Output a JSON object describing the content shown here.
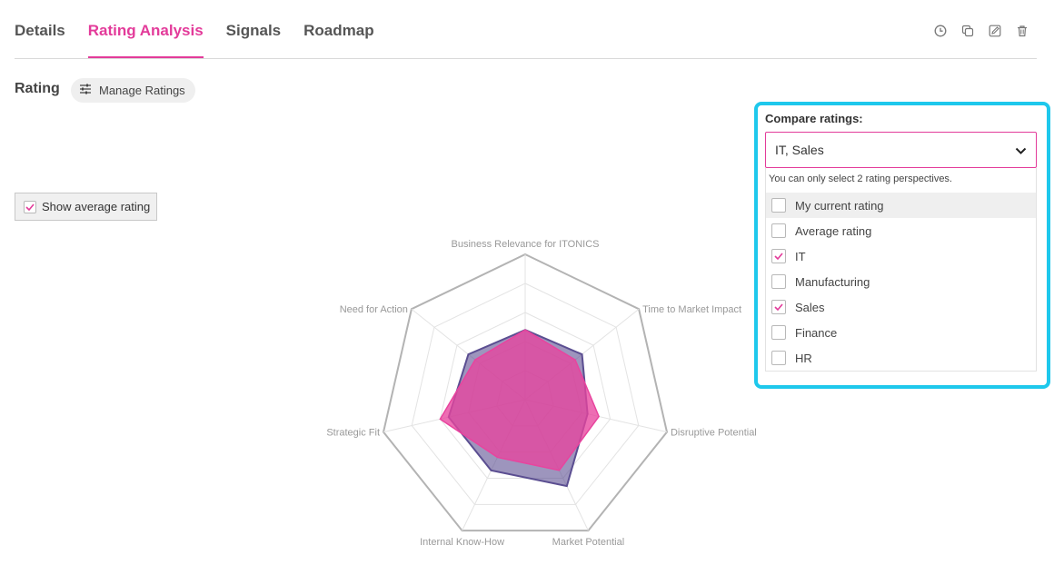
{
  "tabs": [
    {
      "label": "Details",
      "active": false
    },
    {
      "label": "Rating Analysis",
      "active": true
    },
    {
      "label": "Signals",
      "active": false
    },
    {
      "label": "Roadmap",
      "active": false
    }
  ],
  "toolbar_icons": [
    "history-icon",
    "copy-icon",
    "edit-icon",
    "trash-icon"
  ],
  "rating": {
    "title": "Rating",
    "manage_label": "Manage Ratings"
  },
  "average_toggle": {
    "label": "Show average rating",
    "checked": true
  },
  "compare": {
    "title": "Compare ratings:",
    "selected_value": "IT, Sales",
    "hint": "You can only select 2 rating perspectives.",
    "options": [
      {
        "label": "My current rating",
        "checked": false,
        "highlighted": true
      },
      {
        "label": "Average rating",
        "checked": false,
        "highlighted": false
      },
      {
        "label": "IT",
        "checked": true,
        "highlighted": false
      },
      {
        "label": "Manufacturing",
        "checked": false,
        "highlighted": false
      },
      {
        "label": "Sales",
        "checked": true,
        "highlighted": false
      },
      {
        "label": "Finance",
        "checked": false,
        "highlighted": false
      },
      {
        "label": "HR",
        "checked": false,
        "highlighted": false
      }
    ]
  },
  "colors": {
    "accent": "#e33b9a",
    "focus_frame": "#1ec8ec",
    "series_purple": "#5b4e91",
    "series_pink": "#e8449e"
  },
  "chart_data": {
    "type": "radar",
    "axes": [
      "Business Relevance for ITONICS",
      "Time to Market Impact",
      "Disruptive Potential",
      "Market Potential",
      "Internal Know-How",
      "Strategic Fit",
      "Need for Action"
    ],
    "rlim": [
      0,
      5
    ],
    "grid_levels": 5,
    "series": [
      {
        "values": [
          2.4,
          2.5,
          2.2,
          3.3,
          2.7,
          2.7,
          2.5
        ],
        "color": "#5b4e91"
      },
      {
        "values": [
          2.4,
          2.2,
          2.6,
          2.7,
          2.2,
          3.0,
          2.2
        ],
        "color": "#e8449e"
      }
    ]
  }
}
